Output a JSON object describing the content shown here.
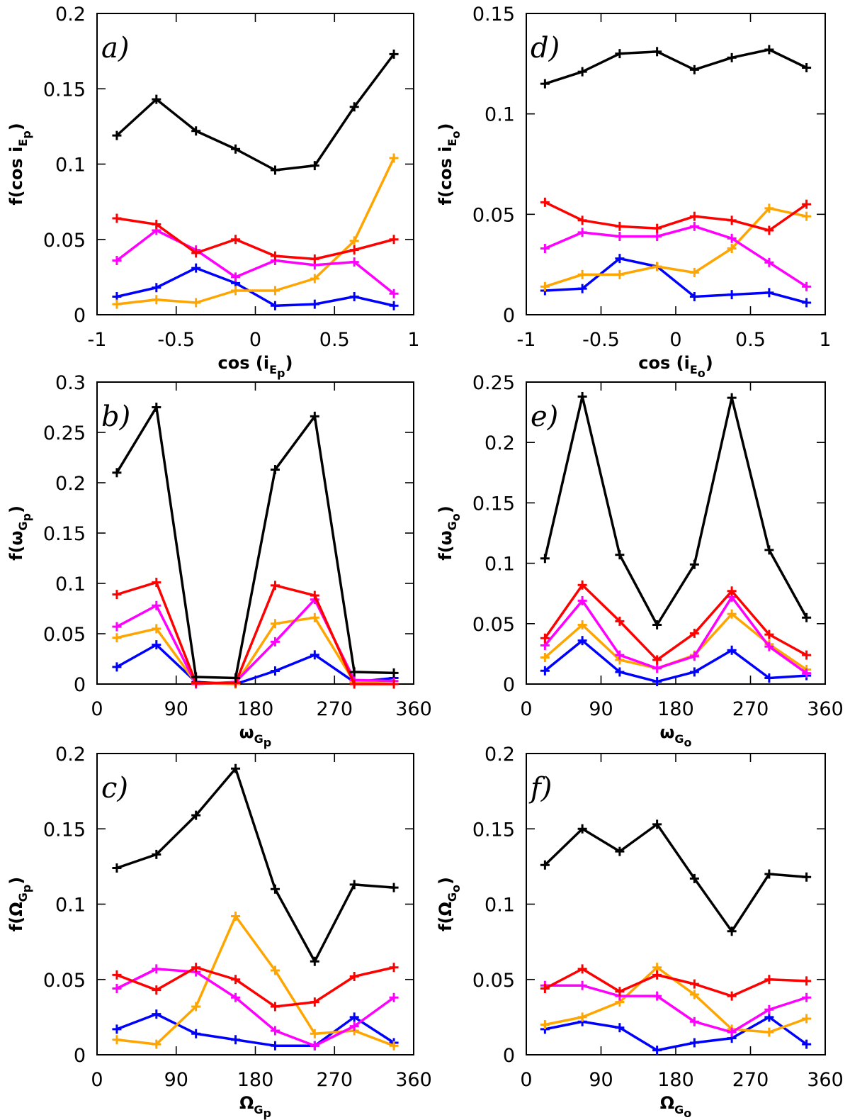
{
  "chart_data": [
    {
      "id": "a",
      "type": "line",
      "panel_label": "a)",
      "xlabel": {
        "main": "cos (i",
        "sub1": "E",
        "sub2": "p",
        "close": ")"
      },
      "ylabel": {
        "main": "f(cos i",
        "sub1": "E",
        "sub2": "p",
        "close": ")"
      },
      "xlim": [
        -1,
        1
      ],
      "ylim": [
        0,
        0.2
      ],
      "xticks": [
        -1,
        -0.5,
        0,
        0.5,
        1
      ],
      "xtick_labels": [
        "-1",
        "-0.5",
        "0",
        "0.5",
        "1"
      ],
      "yticks": [
        0,
        0.05,
        0.1,
        0.15,
        0.2
      ],
      "ytick_labels": [
        "0",
        "0.05",
        "0.1",
        "0.15",
        "0.2"
      ],
      "x": [
        -0.875,
        -0.625,
        -0.375,
        -0.125,
        0.125,
        0.375,
        0.625,
        0.875
      ],
      "series": [
        {
          "name": "black",
          "color": "#000000",
          "values": [
            0.119,
            0.143,
            0.122,
            0.11,
            0.096,
            0.099,
            0.138,
            0.173
          ]
        },
        {
          "name": "red",
          "color": "#ff0000",
          "values": [
            0.064,
            0.06,
            0.041,
            0.05,
            0.039,
            0.037,
            0.043,
            0.05
          ]
        },
        {
          "name": "magenta",
          "color": "#ff00ff",
          "values": [
            0.036,
            0.056,
            0.043,
            0.025,
            0.036,
            0.033,
            0.035,
            0.014
          ]
        },
        {
          "name": "orange",
          "color": "#ffa500",
          "values": [
            0.007,
            0.01,
            0.008,
            0.016,
            0.016,
            0.024,
            0.049,
            0.104
          ]
        },
        {
          "name": "blue",
          "color": "#0000ff",
          "values": [
            0.012,
            0.018,
            0.031,
            0.021,
            0.006,
            0.007,
            0.012,
            0.006
          ]
        }
      ]
    },
    {
      "id": "d",
      "type": "line",
      "panel_label": "d)",
      "xlabel": {
        "main": "cos (i",
        "sub1": "E",
        "sub2": "o",
        "close": ")"
      },
      "ylabel": {
        "main": "f(cos i",
        "sub1": "E",
        "sub2": "o",
        "close": ")"
      },
      "xlim": [
        -1,
        1
      ],
      "ylim": [
        0,
        0.15
      ],
      "xticks": [
        -1,
        -0.5,
        0,
        0.5,
        1
      ],
      "xtick_labels": [
        "-1",
        "-0.5",
        "0",
        "0.5",
        "1"
      ],
      "yticks": [
        0,
        0.05,
        0.1,
        0.15
      ],
      "ytick_labels": [
        "0",
        "0.05",
        "0.1",
        "0.15"
      ],
      "x": [
        -0.875,
        -0.625,
        -0.375,
        -0.125,
        0.125,
        0.375,
        0.625,
        0.875
      ],
      "series": [
        {
          "name": "black",
          "color": "#000000",
          "values": [
            0.115,
            0.121,
            0.13,
            0.131,
            0.122,
            0.128,
            0.132,
            0.123
          ]
        },
        {
          "name": "red",
          "color": "#ff0000",
          "values": [
            0.056,
            0.047,
            0.044,
            0.043,
            0.049,
            0.047,
            0.042,
            0.055
          ]
        },
        {
          "name": "magenta",
          "color": "#ff00ff",
          "values": [
            0.033,
            0.041,
            0.039,
            0.039,
            0.044,
            0.038,
            0.026,
            0.014
          ]
        },
        {
          "name": "orange",
          "color": "#ffa500",
          "values": [
            0.014,
            0.02,
            0.02,
            0.024,
            0.021,
            0.033,
            0.053,
            0.049
          ]
        },
        {
          "name": "blue",
          "color": "#0000ff",
          "values": [
            0.012,
            0.013,
            0.028,
            0.024,
            0.009,
            0.01,
            0.011,
            0.006
          ]
        }
      ]
    },
    {
      "id": "b",
      "type": "line",
      "panel_label": "b)",
      "xlabel": {
        "main": "ω",
        "sub1": "G",
        "sub2": "p",
        "close": ""
      },
      "ylabel": {
        "main": "f(ω",
        "sub1": "G",
        "sub2": "p",
        "close": ")"
      },
      "xlim": [
        0,
        360
      ],
      "ylim": [
        0,
        0.3
      ],
      "xticks": [
        0,
        90,
        180,
        270,
        360
      ],
      "xtick_labels": [
        "0",
        "90",
        "180",
        "270",
        "360"
      ],
      "yticks": [
        0,
        0.05,
        0.1,
        0.15,
        0.2,
        0.25,
        0.3
      ],
      "ytick_labels": [
        "0",
        "0.05",
        "0.1",
        "0.15",
        "0.2",
        "0.25",
        "0.3"
      ],
      "x": [
        22.5,
        67.5,
        112.5,
        157.5,
        202.5,
        247.5,
        292.5,
        337.5
      ],
      "series": [
        {
          "name": "black",
          "color": "#000000",
          "values": [
            0.21,
            0.275,
            0.007,
            0.006,
            0.213,
            0.266,
            0.012,
            0.011
          ]
        },
        {
          "name": "red",
          "color": "#ff0000",
          "values": [
            0.089,
            0.101,
            0.001,
            0.001,
            0.098,
            0.088,
            0.0,
            0.0
          ]
        },
        {
          "name": "magenta",
          "color": "#ff00ff",
          "values": [
            0.057,
            0.078,
            0.0,
            0.002,
            0.042,
            0.084,
            0.004,
            0.003
          ]
        },
        {
          "name": "orange",
          "color": "#ffa500",
          "values": [
            0.046,
            0.055,
            0.001,
            0.0,
            0.06,
            0.066,
            0.002,
            0.0
          ]
        },
        {
          "name": "blue",
          "color": "#0000ff",
          "values": [
            0.017,
            0.039,
            0.002,
            0.0,
            0.013,
            0.029,
            0.002,
            0.006
          ]
        }
      ]
    },
    {
      "id": "e",
      "type": "line",
      "panel_label": "e)",
      "xlabel": {
        "main": "ω",
        "sub1": "G",
        "sub2": "o",
        "close": ""
      },
      "ylabel": {
        "main": "f(ω",
        "sub1": "G",
        "sub2": "o",
        "close": ")"
      },
      "xlim": [
        0,
        360
      ],
      "ylim": [
        0,
        0.25
      ],
      "xticks": [
        0,
        90,
        180,
        270,
        360
      ],
      "xtick_labels": [
        "0",
        "90",
        "180",
        "270",
        "360"
      ],
      "yticks": [
        0,
        0.05,
        0.1,
        0.15,
        0.2,
        0.25
      ],
      "ytick_labels": [
        "0",
        "0.05",
        "0.1",
        "0.15",
        "0.2",
        "0.25"
      ],
      "x": [
        22.5,
        67.5,
        112.5,
        157.5,
        202.5,
        247.5,
        292.5,
        337.5
      ],
      "series": [
        {
          "name": "black",
          "color": "#000000",
          "values": [
            0.104,
            0.238,
            0.107,
            0.049,
            0.099,
            0.237,
            0.111,
            0.055
          ]
        },
        {
          "name": "red",
          "color": "#ff0000",
          "values": [
            0.038,
            0.082,
            0.052,
            0.02,
            0.042,
            0.077,
            0.041,
            0.024
          ]
        },
        {
          "name": "magenta",
          "color": "#ff00ff",
          "values": [
            0.032,
            0.069,
            0.024,
            0.013,
            0.023,
            0.072,
            0.031,
            0.009
          ]
        },
        {
          "name": "orange",
          "color": "#ffa500",
          "values": [
            0.022,
            0.049,
            0.02,
            0.013,
            0.024,
            0.058,
            0.033,
            0.012
          ]
        },
        {
          "name": "blue",
          "color": "#0000ff",
          "values": [
            0.011,
            0.036,
            0.01,
            0.002,
            0.01,
            0.028,
            0.005,
            0.007
          ]
        }
      ]
    },
    {
      "id": "c",
      "type": "line",
      "panel_label": "c)",
      "xlabel": {
        "main": "Ω",
        "sub1": "G",
        "sub2": "p",
        "close": ""
      },
      "ylabel": {
        "main": "f(Ω",
        "sub1": "G",
        "sub2": "p",
        "close": ")"
      },
      "xlim": [
        0,
        360
      ],
      "ylim": [
        0,
        0.2
      ],
      "xticks": [
        0,
        90,
        180,
        270,
        360
      ],
      "xtick_labels": [
        "0",
        "90",
        "180",
        "270",
        "360"
      ],
      "yticks": [
        0,
        0.05,
        0.1,
        0.15,
        0.2
      ],
      "ytick_labels": [
        "0",
        "0.05",
        "0.1",
        "0.15",
        "0.2"
      ],
      "x": [
        22.5,
        67.5,
        112.5,
        157.5,
        202.5,
        247.5,
        292.5,
        337.5
      ],
      "series": [
        {
          "name": "black",
          "color": "#000000",
          "values": [
            0.124,
            0.133,
            0.159,
            0.19,
            0.11,
            0.062,
            0.113,
            0.111
          ]
        },
        {
          "name": "red",
          "color": "#ff0000",
          "values": [
            0.053,
            0.043,
            0.058,
            0.05,
            0.032,
            0.035,
            0.052,
            0.058
          ]
        },
        {
          "name": "magenta",
          "color": "#ff00ff",
          "values": [
            0.044,
            0.057,
            0.055,
            0.038,
            0.016,
            0.006,
            0.019,
            0.038
          ]
        },
        {
          "name": "orange",
          "color": "#ffa500",
          "values": [
            0.01,
            0.007,
            0.032,
            0.092,
            0.056,
            0.014,
            0.016,
            0.006
          ]
        },
        {
          "name": "blue",
          "color": "#0000ff",
          "values": [
            0.017,
            0.027,
            0.014,
            0.01,
            0.006,
            0.006,
            0.025,
            0.008
          ]
        }
      ]
    },
    {
      "id": "f",
      "type": "line",
      "panel_label": "f)",
      "xlabel": {
        "main": "Ω",
        "sub1": "G",
        "sub2": "o",
        "close": ""
      },
      "ylabel": {
        "main": "f(Ω",
        "sub1": "G",
        "sub2": "o",
        "close": ")"
      },
      "xlim": [
        0,
        360
      ],
      "ylim": [
        0,
        0.2
      ],
      "xticks": [
        0,
        90,
        180,
        270,
        360
      ],
      "xtick_labels": [
        "0",
        "90",
        "180",
        "270",
        "360"
      ],
      "yticks": [
        0,
        0.05,
        0.1,
        0.15,
        0.2
      ],
      "ytick_labels": [
        "0",
        "0.05",
        "0.1",
        "0.15",
        "0.2"
      ],
      "x": [
        22.5,
        67.5,
        112.5,
        157.5,
        202.5,
        247.5,
        292.5,
        337.5
      ],
      "series": [
        {
          "name": "black",
          "color": "#000000",
          "values": [
            0.126,
            0.15,
            0.135,
            0.153,
            0.117,
            0.082,
            0.12,
            0.118
          ]
        },
        {
          "name": "red",
          "color": "#ff0000",
          "values": [
            0.044,
            0.057,
            0.042,
            0.053,
            0.047,
            0.039,
            0.05,
            0.049
          ]
        },
        {
          "name": "magenta",
          "color": "#ff00ff",
          "values": [
            0.046,
            0.046,
            0.039,
            0.039,
            0.022,
            0.015,
            0.03,
            0.038
          ]
        },
        {
          "name": "orange",
          "color": "#ffa500",
          "values": [
            0.02,
            0.025,
            0.035,
            0.058,
            0.04,
            0.017,
            0.015,
            0.024
          ]
        },
        {
          "name": "blue",
          "color": "#0000ff",
          "values": [
            0.017,
            0.022,
            0.018,
            0.003,
            0.008,
            0.011,
            0.025,
            0.007
          ]
        }
      ]
    }
  ]
}
